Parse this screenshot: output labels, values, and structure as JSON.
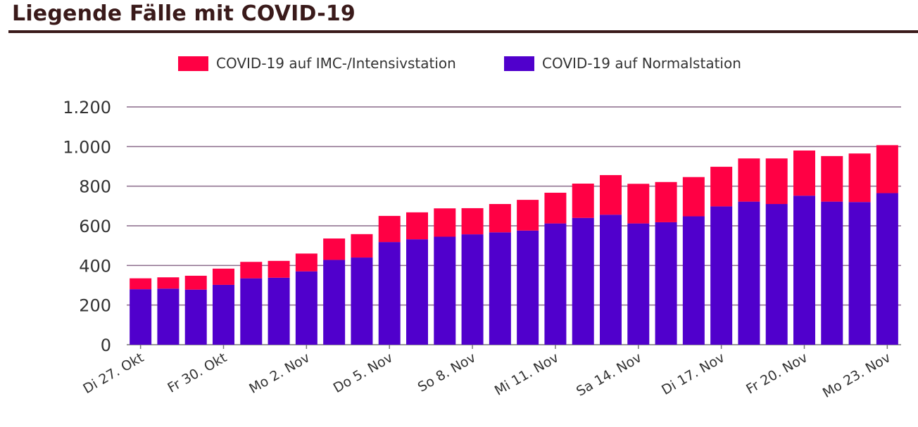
{
  "title": "Liegende Fälle mit COVID-19",
  "colors": {
    "imc": "#ff0044",
    "normal": "#5000cc",
    "grid": "#8a6a8a",
    "title": "#3a1a1a"
  },
  "legend": {
    "imc": "COVID-19 auf IMC-/Intensivstation",
    "normal": "COVID-19 auf Normalstation"
  },
  "chart_data": {
    "type": "bar",
    "stacked": true,
    "ylim": [
      0,
      1200
    ],
    "yticks": [
      0,
      200,
      400,
      600,
      800,
      1000,
      1200
    ],
    "ytick_labels": [
      "0",
      "200",
      "400",
      "600",
      "800",
      "1.000",
      "1.200"
    ],
    "xtick_labels": [
      {
        "index": 0,
        "label": "Di 27. Okt"
      },
      {
        "index": 3,
        "label": "Fr 30. Okt"
      },
      {
        "index": 6,
        "label": "Mo 2. Nov"
      },
      {
        "index": 9,
        "label": "Do 5. Nov"
      },
      {
        "index": 12,
        "label": "So 8. Nov"
      },
      {
        "index": 15,
        "label": "Mi 11. Nov"
      },
      {
        "index": 18,
        "label": "Sa 14. Nov"
      },
      {
        "index": 21,
        "label": "Di 17. Nov"
      },
      {
        "index": 24,
        "label": "Fr 20. Nov"
      },
      {
        "index": 27,
        "label": "Mo 23. Nov"
      }
    ],
    "grid": true,
    "legend_position": "top",
    "series": [
      {
        "name": "COVID-19 auf Normalstation",
        "values": [
          280,
          283,
          278,
          302,
          335,
          338,
          370,
          428,
          440,
          518,
          532,
          545,
          557,
          567,
          576,
          612,
          640,
          656,
          612,
          618,
          648,
          698,
          722,
          710,
          752,
          722,
          720,
          765
        ]
      },
      {
        "name": "COVID-19 auf IMC-/Intensivstation",
        "values": [
          55,
          57,
          70,
          82,
          83,
          85,
          90,
          108,
          118,
          132,
          136,
          143,
          132,
          143,
          155,
          155,
          173,
          200,
          200,
          203,
          198,
          200,
          218,
          230,
          228,
          230,
          245,
          242
        ]
      }
    ]
  }
}
